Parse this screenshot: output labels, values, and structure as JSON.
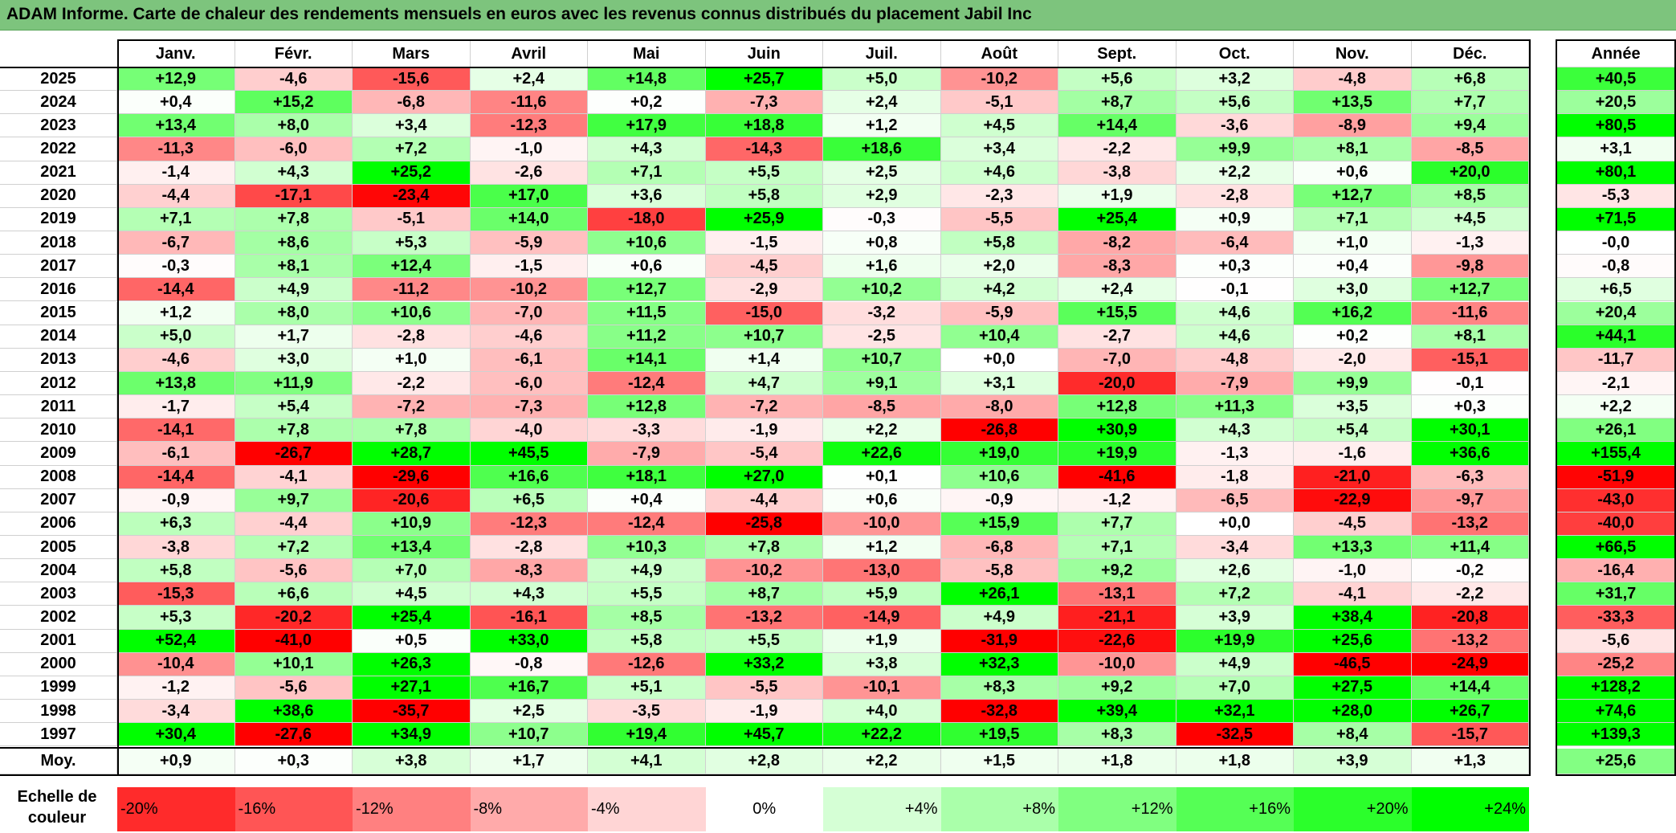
{
  "title": "ADAM Informe. Carte de chaleur des rendements mensuels en euros avec les revenus connus distribués du placement Jabil Inc",
  "colors": {
    "title_bg": "#7dc47d",
    "neg_max": "#ff0000",
    "neutral": "#ffffff",
    "pos_max": "#00ff00"
  },
  "chart_data": {
    "type": "heatmap",
    "title": "ADAM Informe. Carte de chaleur des rendements mensuels en euros avec les revenus connus distribués du placement Jabil Inc",
    "columns": [
      "Janv.",
      "Févr.",
      "Mars",
      "Avril",
      "Mai",
      "Juin",
      "Juil.",
      "Août",
      "Sept.",
      "Oct.",
      "Nov.",
      "Déc."
    ],
    "year_column_label": "Année",
    "rows": [
      {
        "year": "2025",
        "values": [
          "+12,9",
          "-4,6",
          "-15,6",
          "+2,4",
          "+14,8",
          "+25,7",
          "+5,0",
          "-10,2",
          "+5,6",
          "+3,2",
          "-4,8",
          "+6,8"
        ],
        "annual": "+40,5"
      },
      {
        "year": "2024",
        "values": [
          "+0,4",
          "+15,2",
          "-6,8",
          "-11,6",
          "+0,2",
          "-7,3",
          "+2,4",
          "-5,1",
          "+8,7",
          "+5,6",
          "+13,5",
          "+7,7"
        ],
        "annual": "+20,5"
      },
      {
        "year": "2023",
        "values": [
          "+13,4",
          "+8,0",
          "+3,4",
          "-12,3",
          "+17,9",
          "+18,8",
          "+1,2",
          "+4,5",
          "+14,4",
          "-3,6",
          "-8,9",
          "+9,4"
        ],
        "annual": "+80,5"
      },
      {
        "year": "2022",
        "values": [
          "-11,3",
          "-6,0",
          "+7,2",
          "-1,0",
          "+4,3",
          "-14,3",
          "+18,6",
          "+3,4",
          "-2,2",
          "+9,9",
          "+8,1",
          "-8,5"
        ],
        "annual": "+3,1"
      },
      {
        "year": "2021",
        "values": [
          "-1,4",
          "+4,3",
          "+25,2",
          "-2,6",
          "+7,1",
          "+5,5",
          "+2,5",
          "+4,6",
          "-3,8",
          "+2,2",
          "+0,6",
          "+20,0"
        ],
        "annual": "+80,1"
      },
      {
        "year": "2020",
        "values": [
          "-4,4",
          "-17,1",
          "-23,4",
          "+17,0",
          "+3,6",
          "+5,8",
          "+2,9",
          "-2,3",
          "+1,9",
          "-2,8",
          "+12,7",
          "+8,5"
        ],
        "annual": "-5,3"
      },
      {
        "year": "2019",
        "values": [
          "+7,1",
          "+7,8",
          "-5,1",
          "+14,0",
          "-18,0",
          "+25,9",
          "-0,3",
          "-5,5",
          "+25,4",
          "+0,9",
          "+7,1",
          "+4,5"
        ],
        "annual": "+71,5"
      },
      {
        "year": "2018",
        "values": [
          "-6,7",
          "+8,6",
          "+5,3",
          "-5,9",
          "+10,6",
          "-1,5",
          "+0,8",
          "+5,8",
          "-8,2",
          "-6,4",
          "+1,0",
          "-1,3"
        ],
        "annual": "-0,0"
      },
      {
        "year": "2017",
        "values": [
          "-0,3",
          "+8,1",
          "+12,4",
          "-1,5",
          "+0,6",
          "-4,5",
          "+1,6",
          "+2,0",
          "-8,3",
          "+0,3",
          "+0,4",
          "-9,8"
        ],
        "annual": "-0,8"
      },
      {
        "year": "2016",
        "values": [
          "-14,4",
          "+4,9",
          "-11,2",
          "-10,2",
          "+12,7",
          "-2,9",
          "+10,2",
          "+4,2",
          "+2,4",
          "-0,1",
          "+3,0",
          "+12,7"
        ],
        "annual": "+6,5"
      },
      {
        "year": "2015",
        "values": [
          "+1,2",
          "+8,0",
          "+10,6",
          "-7,0",
          "+11,5",
          "-15,0",
          "-3,2",
          "-5,9",
          "+15,5",
          "+4,6",
          "+16,2",
          "-11,6"
        ],
        "annual": "+20,4"
      },
      {
        "year": "2014",
        "values": [
          "+5,0",
          "+1,7",
          "-2,8",
          "-4,6",
          "+11,2",
          "+10,7",
          "-2,5",
          "+10,4",
          "-2,7",
          "+4,6",
          "+0,2",
          "+8,1"
        ],
        "annual": "+44,1"
      },
      {
        "year": "2013",
        "values": [
          "-4,6",
          "+3,0",
          "+1,0",
          "-6,1",
          "+14,1",
          "+1,4",
          "+10,7",
          "+0,0",
          "-7,0",
          "-4,8",
          "-2,0",
          "-15,1"
        ],
        "annual": "-11,7"
      },
      {
        "year": "2012",
        "values": [
          "+13,8",
          "+11,9",
          "-2,2",
          "-6,0",
          "-12,4",
          "+4,7",
          "+9,1",
          "+3,1",
          "-20,0",
          "-7,9",
          "+9,9",
          "-0,1"
        ],
        "annual": "-2,1"
      },
      {
        "year": "2011",
        "values": [
          "-1,7",
          "+5,4",
          "-7,2",
          "-7,3",
          "+12,8",
          "-7,2",
          "-8,5",
          "-8,0",
          "+12,8",
          "+11,3",
          "+3,5",
          "+0,3"
        ],
        "annual": "+2,2"
      },
      {
        "year": "2010",
        "values": [
          "-14,1",
          "+7,8",
          "+7,8",
          "-4,0",
          "-3,3",
          "-1,9",
          "+2,2",
          "-26,8",
          "+30,9",
          "+4,3",
          "+5,4",
          "+30,1"
        ],
        "annual": "+26,1"
      },
      {
        "year": "2009",
        "values": [
          "-6,1",
          "-26,7",
          "+28,7",
          "+45,5",
          "-7,9",
          "-5,4",
          "+22,6",
          "+19,0",
          "+19,9",
          "-1,3",
          "-1,6",
          "+36,6"
        ],
        "annual": "+155,4"
      },
      {
        "year": "2008",
        "values": [
          "-14,4",
          "-4,1",
          "-29,6",
          "+16,6",
          "+18,1",
          "+27,0",
          "+0,1",
          "+10,6",
          "-41,6",
          "-1,8",
          "-21,0",
          "-6,3"
        ],
        "annual": "-51,9"
      },
      {
        "year": "2007",
        "values": [
          "-0,9",
          "+9,7",
          "-20,6",
          "+6,5",
          "+0,4",
          "-4,4",
          "+0,6",
          "-0,9",
          "-1,2",
          "-6,5",
          "-22,9",
          "-9,7"
        ],
        "annual": "-43,0"
      },
      {
        "year": "2006",
        "values": [
          "+6,3",
          "-4,4",
          "+10,9",
          "-12,3",
          "-12,4",
          "-25,8",
          "-10,0",
          "+15,9",
          "+7,7",
          "+0,0",
          "-4,5",
          "-13,2"
        ],
        "annual": "-40,0"
      },
      {
        "year": "2005",
        "values": [
          "-3,8",
          "+7,2",
          "+13,4",
          "-2,8",
          "+10,3",
          "+7,8",
          "+1,2",
          "-6,8",
          "+7,1",
          "-3,4",
          "+13,3",
          "+11,4"
        ],
        "annual": "+66,5"
      },
      {
        "year": "2004",
        "values": [
          "+5,8",
          "-5,6",
          "+7,0",
          "-8,3",
          "+4,9",
          "-10,2",
          "-13,0",
          "-5,8",
          "+9,2",
          "+2,6",
          "-1,0",
          "-0,2"
        ],
        "annual": "-16,4"
      },
      {
        "year": "2003",
        "values": [
          "-15,3",
          "+6,6",
          "+4,5",
          "+4,3",
          "+5,5",
          "+8,7",
          "+5,9",
          "+26,1",
          "-13,1",
          "+7,2",
          "-4,1",
          "-2,2"
        ],
        "annual": "+31,7"
      },
      {
        "year": "2002",
        "values": [
          "+5,3",
          "-20,2",
          "+25,4",
          "-16,1",
          "+8,5",
          "-13,2",
          "-14,9",
          "+4,9",
          "-21,1",
          "+3,9",
          "+38,4",
          "-20,8"
        ],
        "annual": "-33,3"
      },
      {
        "year": "2001",
        "values": [
          "+52,4",
          "-41,0",
          "+0,5",
          "+33,0",
          "+5,8",
          "+5,5",
          "+1,9",
          "-31,9",
          "-22,6",
          "+19,9",
          "+25,6",
          "-13,2"
        ],
        "annual": "-5,6"
      },
      {
        "year": "2000",
        "values": [
          "-10,4",
          "+10,1",
          "+26,3",
          "-0,8",
          "-12,6",
          "+33,2",
          "+3,8",
          "+32,3",
          "-10,0",
          "+4,9",
          "-46,5",
          "-24,9"
        ],
        "annual": "-25,2"
      },
      {
        "year": "1999",
        "values": [
          "-1,2",
          "-5,6",
          "+27,1",
          "+16,7",
          "+5,1",
          "-5,5",
          "-10,1",
          "+8,3",
          "+9,2",
          "+7,0",
          "+27,5",
          "+14,4"
        ],
        "annual": "+128,2"
      },
      {
        "year": "1998",
        "values": [
          "-3,4",
          "+38,6",
          "-35,7",
          "+2,5",
          "-3,5",
          "-1,9",
          "+4,0",
          "-32,8",
          "+39,4",
          "+32,1",
          "+28,0",
          "+26,7"
        ],
        "annual": "+74,6"
      },
      {
        "year": "1997",
        "values": [
          "+30,4",
          "-27,6",
          "+34,9",
          "+10,7",
          "+19,4",
          "+45,7",
          "+22,2",
          "+19,5",
          "+8,3",
          "-32,5",
          "+8,4",
          "-15,7"
        ],
        "annual": "+139,3"
      }
    ],
    "average": {
      "label": "Moy.",
      "values": [
        "+0,9",
        "+0,3",
        "+3,8",
        "+1,7",
        "+4,1",
        "+2,8",
        "+2,2",
        "+1,5",
        "+1,8",
        "+1,8",
        "+3,9",
        "+1,3"
      ],
      "annual": "+25,6"
    },
    "color_scale": {
      "label": "Echelle de couleur",
      "steps": [
        {
          "label": "-20%",
          "value": -20
        },
        {
          "label": "-16%",
          "value": -16
        },
        {
          "label": "-12%",
          "value": -12
        },
        {
          "label": "-8%",
          "value": -8
        },
        {
          "label": "-4%",
          "value": -4
        },
        {
          "label": "0%",
          "value": 0
        },
        {
          "label": "+4%",
          "value": 4
        },
        {
          "label": "+8%",
          "value": 8
        },
        {
          "label": "+12%",
          "value": 12
        },
        {
          "label": "+16%",
          "value": 16
        },
        {
          "label": "+20%",
          "value": 20
        },
        {
          "label": "+24%",
          "value": 24
        }
      ]
    }
  }
}
